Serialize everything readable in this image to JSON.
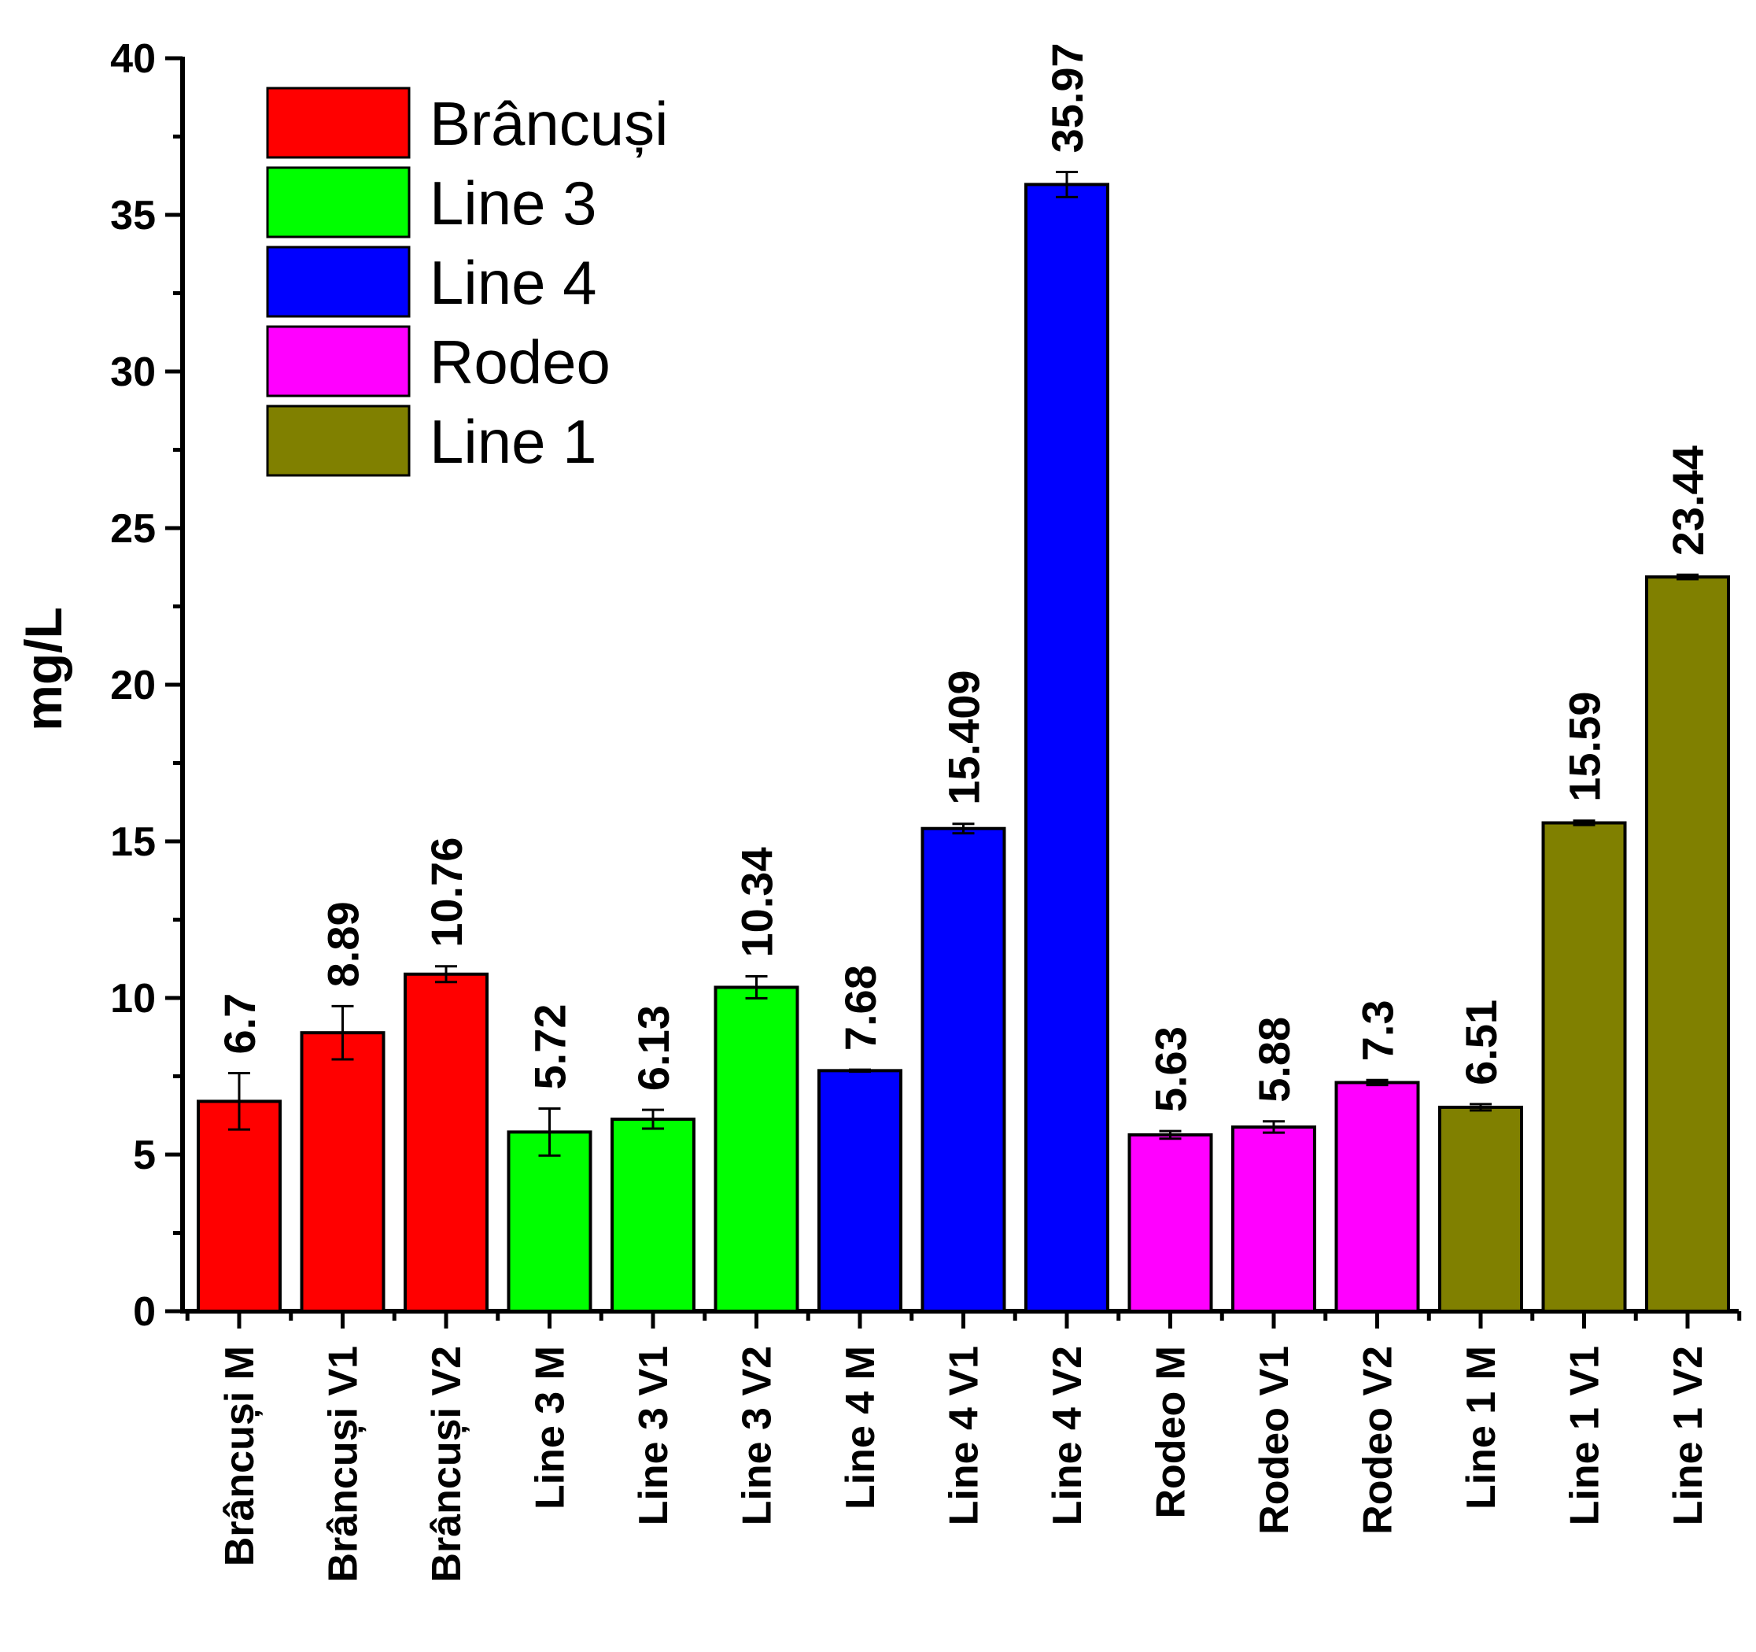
{
  "chart_data": {
    "type": "bar",
    "title": "",
    "xlabel": "",
    "ylabel": "mg/L",
    "ylim": [
      0,
      40
    ],
    "yticks": [
      0,
      5,
      10,
      15,
      20,
      25,
      30,
      35,
      40
    ],
    "grid": false,
    "legend_position": "top-left",
    "groups": [
      {
        "name": "Brâncuși",
        "color": "#ff0000"
      },
      {
        "name": "Line 3",
        "color": "#00ff00"
      },
      {
        "name": "Line 4",
        "color": "#0000ff"
      },
      {
        "name": "Rodeo",
        "color": "#ff00ff"
      },
      {
        "name": "Line 1",
        "color": "#808000"
      }
    ],
    "bars": [
      {
        "category": "Brâncuși M",
        "group": 0,
        "value": 6.7,
        "error": 0.9,
        "label": "6.7"
      },
      {
        "category": "Brâncuși V1",
        "group": 0,
        "value": 8.89,
        "error": 0.85,
        "label": "8.89"
      },
      {
        "category": "Brâncuși V2",
        "group": 0,
        "value": 10.76,
        "error": 0.25,
        "label": "10.76"
      },
      {
        "category": "Line 3 M",
        "group": 1,
        "value": 5.72,
        "error": 0.75,
        "label": "5.72"
      },
      {
        "category": "Line 3 V1",
        "group": 1,
        "value": 6.13,
        "error": 0.3,
        "label": "6.13"
      },
      {
        "category": "Line 3 V2",
        "group": 1,
        "value": 10.34,
        "error": 0.35,
        "label": "10.34"
      },
      {
        "category": "Line 4 M",
        "group": 2,
        "value": 7.68,
        "error": 0.03,
        "label": "7.68"
      },
      {
        "category": "Line 4 V1",
        "group": 2,
        "value": 15.409,
        "error": 0.15,
        "label": "15.409"
      },
      {
        "category": "Line 4 V2",
        "group": 2,
        "value": 35.97,
        "error": 0.4,
        "label": "35.97"
      },
      {
        "category": "Rodeo M",
        "group": 3,
        "value": 5.63,
        "error": 0.12,
        "label": "5.63"
      },
      {
        "category": "Rodeo V1",
        "group": 3,
        "value": 5.88,
        "error": 0.18,
        "label": "5.88"
      },
      {
        "category": "Rodeo V2",
        "group": 3,
        "value": 7.3,
        "error": 0.08,
        "label": "7.3"
      },
      {
        "category": "Line 1 M",
        "group": 4,
        "value": 6.51,
        "error": 0.1,
        "label": "6.51"
      },
      {
        "category": "Line 1 V1",
        "group": 4,
        "value": 15.59,
        "error": 0.07,
        "label": "15.59"
      },
      {
        "category": "Line 1 V2",
        "group": 4,
        "value": 23.44,
        "error": 0.07,
        "label": "23.44"
      }
    ]
  }
}
